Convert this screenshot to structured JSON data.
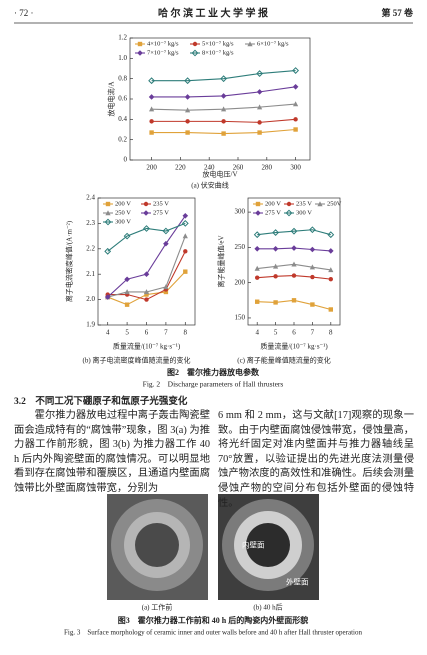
{
  "header": {
    "page": "· 72 ·",
    "journal": "哈 尔 滨 工 业 大 学 学 报",
    "volume": "第 57 卷"
  },
  "chart_data": [
    {
      "type": "line",
      "caption": "(a) 伏安曲线",
      "xlabel": "放电电压/V",
      "ylabel": "放电电流/A",
      "x": [
        200,
        225,
        250,
        275,
        300
      ],
      "xlim": [
        185,
        310
      ],
      "xticks": [
        200,
        220,
        240,
        260,
        280,
        300
      ],
      "ylim": [
        0,
        1.2
      ],
      "yticks": [
        {
          "value": 0,
          "label": "0"
        },
        0.2,
        0.4,
        0.6,
        0.8,
        {
          "value": 1,
          "label": "1.0"
        },
        1.2
      ],
      "series": [
        {
          "name": "4×10⁻⁷ kg/s",
          "color": "#e0a23a",
          "values": [
            0.27,
            0.27,
            0.26,
            0.27,
            0.3
          ]
        },
        {
          "name": "5×10⁻⁷ kg/s",
          "color": "#c0392b",
          "values": [
            0.38,
            0.38,
            0.38,
            0.37,
            0.4
          ]
        },
        {
          "name": "6×10⁻⁷ kg/s",
          "color": "#8c8c8c",
          "values": [
            0.5,
            0.49,
            0.5,
            0.52,
            0.55
          ]
        },
        {
          "name": "7×10⁻⁷ kg/s",
          "color": "#6a3d9a",
          "values": [
            0.62,
            0.62,
            0.63,
            0.67,
            0.72
          ]
        },
        {
          "name": "8×10⁻⁷ kg/s",
          "color": "#2e7d7a",
          "values": [
            0.78,
            0.78,
            0.8,
            0.85,
            0.88
          ]
        }
      ]
    },
    {
      "type": "line",
      "caption": "(b) 离子电流密度峰值随流量的变化",
      "xlabel": "质量流量/(10⁻⁷ kg·s⁻¹)",
      "ylabel": "离子电流密度峰值/(A·m⁻²)",
      "x": [
        4,
        5,
        6,
        7,
        8
      ],
      "xlim": [
        3.5,
        8.5
      ],
      "xticks": [
        4,
        5,
        6,
        7,
        8
      ],
      "ylim": [
        1.9,
        2.4
      ],
      "yticks": [
        1.9,
        {
          "value": 2,
          "label": "2.0"
        },
        2.1,
        2.2,
        2.3,
        2.4
      ],
      "series": [
        {
          "name": "200 V",
          "color": "#e0a23a",
          "values": [
            2.01,
            1.98,
            2.02,
            2.03,
            2.11
          ]
        },
        {
          "name": "235 V",
          "color": "#c0392b",
          "values": [
            2.02,
            2.02,
            2.0,
            2.04,
            2.19
          ]
        },
        {
          "name": "250 V",
          "color": "#8c8c8c",
          "values": [
            2.01,
            2.03,
            2.03,
            2.05,
            2.25
          ]
        },
        {
          "name": "275 V",
          "color": "#6a3d9a",
          "values": [
            2.01,
            2.08,
            2.1,
            2.22,
            2.33
          ]
        },
        {
          "name": "300 V",
          "color": "#2e7d7a",
          "values": [
            2.19,
            2.25,
            2.28,
            2.27,
            2.3
          ]
        }
      ]
    },
    {
      "type": "line",
      "caption": "(c) 离子能量峰值随流量的变化",
      "xlabel": "质量流量/(10⁻⁷ kg·s⁻¹)",
      "ylabel": "离子能量峰值/eV",
      "x": [
        4,
        5,
        6,
        7,
        8
      ],
      "xlim": [
        3.5,
        8.5
      ],
      "xticks": [
        4,
        5,
        6,
        7,
        8
      ],
      "ylim": [
        140,
        320
      ],
      "yticks": [
        150,
        200,
        250,
        300
      ],
      "series": [
        {
          "name": "200 V",
          "color": "#e0a23a",
          "values": [
            173,
            172,
            175,
            169,
            162
          ]
        },
        {
          "name": "235 V",
          "color": "#c0392b",
          "values": [
            207,
            209,
            210,
            208,
            205
          ]
        },
        {
          "name": "250V",
          "color": "#8c8c8c",
          "values": [
            220,
            223,
            226,
            222,
            218
          ]
        },
        {
          "name": "275 V",
          "color": "#6a3d9a",
          "values": [
            248,
            248,
            249,
            247,
            245
          ]
        },
        {
          "name": "300 V",
          "color": "#2e7d7a",
          "values": [
            268,
            271,
            273,
            275,
            268
          ]
        }
      ]
    }
  ],
  "figure2": {
    "caption_cn": "图2　霍尔推力器放电参数",
    "caption_en": "Fig. 2　Discharge parameters of Hall thrusters"
  },
  "section": "3.2　不同工况下硼原子和氙原子光强变化",
  "paragraphs": [
    "　　霍尔推力器放电过程中离子轰击陶瓷壁面会造成特有的“腐蚀带”现象，图 3(a) 为推力器工作前形貌，图 3(b) 为推力器工作 40 h 后内外陶瓷壁面的腐蚀情况。可以明显地看到存在腐蚀带和覆膜区，且通道内壁面腐蚀带比外壁面腐蚀带宽，分别为",
    "6 mm 和 2 mm，这与文献[17]观察的现象一致。由于内壁面腐蚀侵蚀带宽，侵蚀量高，将光纤固定对准内壁面并与推力器轴线呈 70°放置，以验证提出的先进光度法测量侵蚀产物浓度的高效性和准确性。后续会测量侵蚀产物的空间分布包括外壁面的侵蚀特性。"
  ],
  "figure3": {
    "panels": [
      {
        "caption": "(a) 工作前"
      },
      {
        "caption": "(b) 40 h后",
        "labels": [
          "内壁面",
          "外壁面"
        ]
      }
    ],
    "caption_cn": "图3　霍尔推力器工作前和 40 h 后的陶瓷内外壁面形貌",
    "caption_en": "Fig. 3　Surface morphology of ceramic inner and outer walls before and 40 h after Hall thruster operation"
  }
}
